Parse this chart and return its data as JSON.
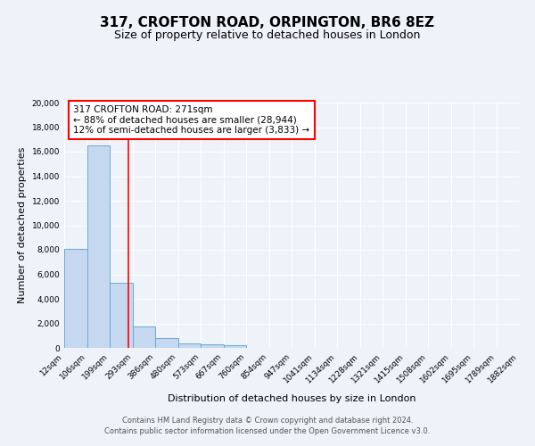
{
  "title": "317, CROFTON ROAD, ORPINGTON, BR6 8EZ",
  "subtitle": "Size of property relative to detached houses in London",
  "xlabel": "Distribution of detached houses by size in London",
  "ylabel": "Number of detached properties",
  "bin_labels": [
    "12sqm",
    "106sqm",
    "199sqm",
    "293sqm",
    "386sqm",
    "480sqm",
    "573sqm",
    "667sqm",
    "760sqm",
    "854sqm",
    "947sqm",
    "1041sqm",
    "1134sqm",
    "1228sqm",
    "1321sqm",
    "1415sqm",
    "1508sqm",
    "1602sqm",
    "1695sqm",
    "1789sqm",
    "1882sqm"
  ],
  "bar_heights": [
    8100,
    16500,
    5300,
    1750,
    800,
    350,
    300,
    200,
    0,
    0,
    0,
    0,
    0,
    0,
    0,
    0,
    0,
    0,
    0,
    0
  ],
  "bar_color": "#c5d8f0",
  "bar_edge_color": "#6aaad4",
  "property_line_x": 2.83,
  "property_line_color": "red",
  "annotation_text": "317 CROFTON ROAD: 271sqm\n← 88% of detached houses are smaller (28,944)\n12% of semi-detached houses are larger (3,833) →",
  "annotation_box_color": "white",
  "annotation_box_edge_color": "red",
  "ylim": [
    0,
    20000
  ],
  "yticks": [
    0,
    2000,
    4000,
    6000,
    8000,
    10000,
    12000,
    14000,
    16000,
    18000,
    20000
  ],
  "footer1": "Contains HM Land Registry data © Crown copyright and database right 2024.",
  "footer2": "Contains public sector information licensed under the Open Government Licence v3.0.",
  "bg_color": "#eef2f9",
  "grid_color": "white",
  "title_fontsize": 11,
  "subtitle_fontsize": 9,
  "axis_label_fontsize": 8,
  "tick_fontsize": 6.5,
  "footer_fontsize": 6,
  "annotation_fontsize": 7.5
}
